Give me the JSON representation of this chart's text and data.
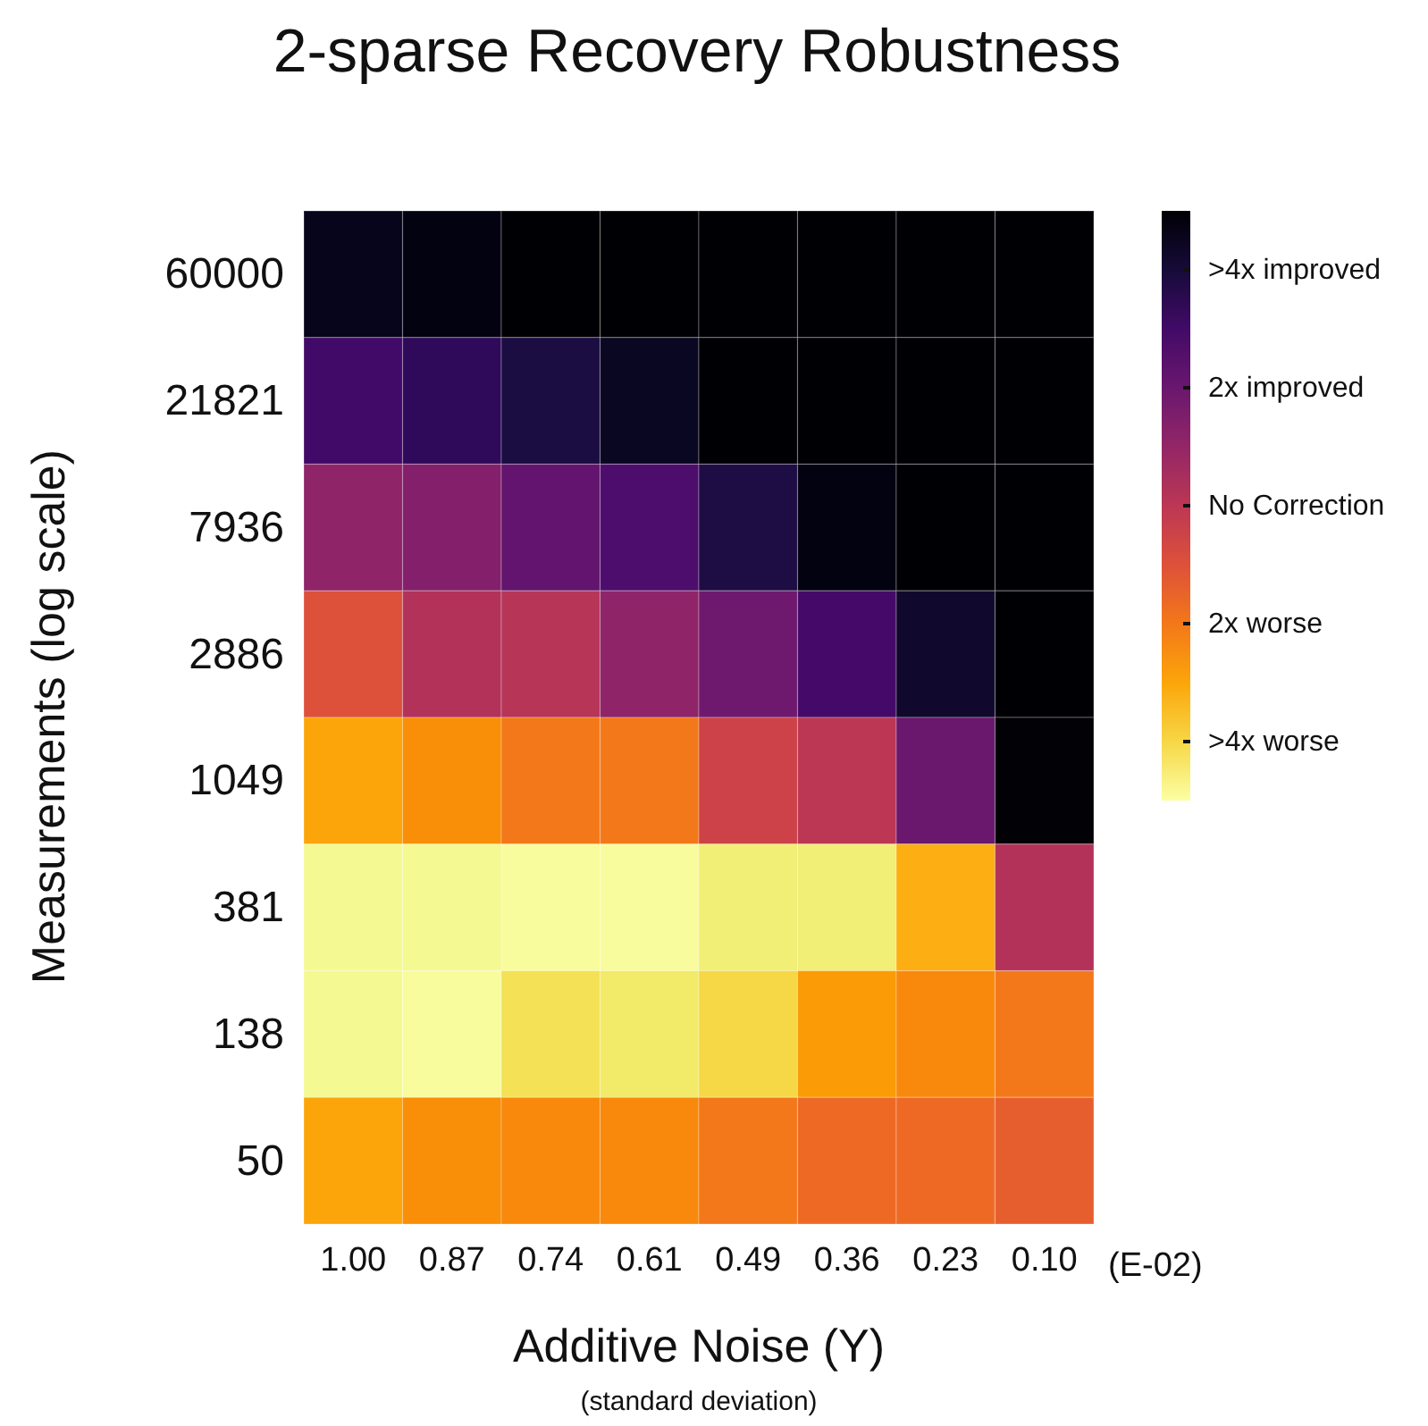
{
  "chart_data": {
    "type": "heatmap",
    "title": "2-sparse Recovery Robustness",
    "xlabel": "Additive Noise (Y)",
    "ylabel": "Measurements (log scale)",
    "annotations": [
      "(E-02)",
      "(standard deviation)"
    ],
    "categories": [
      "1.00",
      "0.87",
      "0.74",
      "0.61",
      "0.49",
      "0.36",
      "0.23",
      "0.10"
    ],
    "y_categories": [
      "60000",
      "21821",
      "7936",
      "2886",
      "1049",
      "381",
      "138",
      "50"
    ],
    "cells": [
      [
        4.5,
        4.7,
        5,
        5,
        5,
        5,
        5,
        5
      ],
      [
        3,
        3.4,
        3.9,
        4.4,
        5,
        5,
        5,
        5
      ],
      [
        1.1,
        1.4,
        2.2,
        2.7,
        3.8,
        4.7,
        5,
        5
      ],
      [
        -1,
        0.2,
        0.1,
        1.1,
        1.9,
        2.9,
        4.2,
        5
      ],
      [
        -3,
        -2.5,
        -2,
        -2,
        -0.5,
        0,
        2,
        4.9
      ],
      [
        -4.8,
        -4.8,
        -4.9,
        -4.9,
        -4.5,
        -4.5,
        -3.2,
        0.2
      ],
      [
        -4.8,
        -4.9,
        -4.2,
        -4.4,
        -4,
        -2.8,
        -2.4,
        -2
      ],
      [
        -3,
        -2.5,
        -2.4,
        -2.4,
        -2,
        -1.7,
        -1.7,
        -1.4
      ]
    ],
    "clim": [
      -5,
      5
    ],
    "cticks": [
      {
        "value": -4,
        "label": ">4x worse"
      },
      {
        "value": -2,
        "label": "2x worse"
      },
      {
        "value": 0,
        "label": "No Correction"
      },
      {
        "value": 2,
        "label": "2x improved"
      },
      {
        "value": 4,
        "label": ">4x improved"
      }
    ]
  }
}
